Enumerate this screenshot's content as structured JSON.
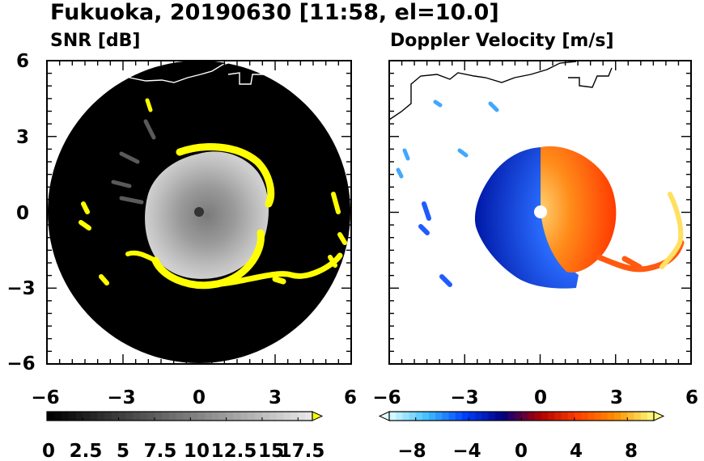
{
  "figure": {
    "title": "Fukuoka, 20190630 [11:58, el=10.0]"
  },
  "chart_data": [
    {
      "type": "heatmap",
      "title": "SNR [dB]",
      "x_ticks": [
        "−6",
        "−3",
        "0",
        "3",
        "6"
      ],
      "y_ticks": [
        "6",
        "3",
        "0",
        "−3",
        "−6"
      ],
      "xlim": [
        -6,
        6
      ],
      "ylim": [
        -6,
        6
      ],
      "range_ring_radius": 6,
      "colorbar": {
        "min": 0,
        "max": 18.5,
        "extend": "max",
        "tick_labels": [
          "0",
          "2.5",
          "5",
          "7.5",
          "10",
          "12.5",
          "15",
          "17.5"
        ],
        "tick_values": [
          0,
          2.5,
          5,
          7.5,
          10,
          12.5,
          15,
          17.5
        ],
        "colors": [
          "#000000",
          "#ffffff",
          "#ffff00"
        ]
      },
      "background_color": "#000000",
      "strong_echo_color": "#ffff00"
    },
    {
      "type": "heatmap",
      "title": "Doppler Velocity [m/s]",
      "x_ticks": [
        "−6",
        "−3",
        "0",
        "3",
        "6"
      ],
      "y_ticks": [
        "6",
        "3",
        "0",
        "−3",
        "−6"
      ],
      "xlim": [
        -6,
        6
      ],
      "ylim": [
        -6,
        6
      ],
      "colorbar": {
        "min": -10,
        "max": 10,
        "extend": "both",
        "tick_labels": [
          "−8",
          "−4",
          "0",
          "4",
          "8"
        ],
        "tick_values": [
          -8,
          -4,
          0,
          4,
          8
        ],
        "colors": [
          "#e0ffff",
          "#40c0ff",
          "#0040ff",
          "#000080",
          "#b00000",
          "#ff4000",
          "#ff9000",
          "#ffff80"
        ]
      }
    }
  ]
}
